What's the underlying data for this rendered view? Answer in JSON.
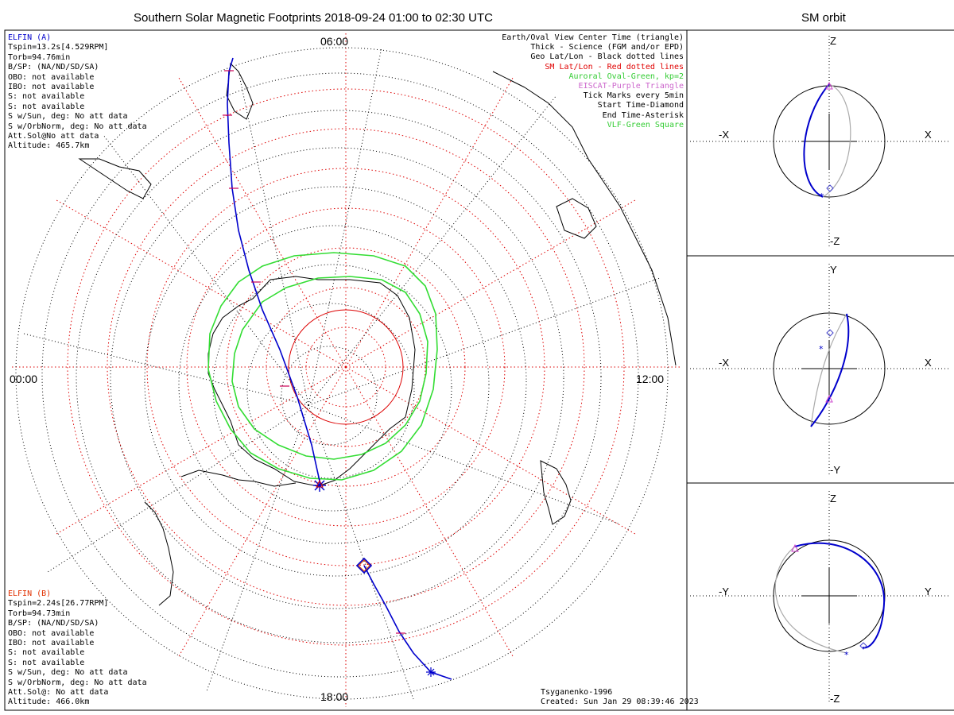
{
  "header": {
    "main_title": "Southern Solar Magnetic Footprints 2018-09-24 01:00 to 02:30 UTC",
    "orbit_title": "SM orbit"
  },
  "map": {
    "hour_labels": {
      "top": "06:00",
      "left": "00:00",
      "right": "12:00",
      "bottom": "18:00"
    }
  },
  "legend": {
    "lines": [
      {
        "text": "Earth/Oval View Center Time (triangle)",
        "color": "#000000"
      },
      {
        "text": "Thick - Science (FGM and/or EPD)",
        "color": "#000000"
      },
      {
        "text": "Geo Lat/Lon - Black dotted lines",
        "color": "#000000"
      },
      {
        "text": "SM Lat/Lon - Red dotted lines",
        "color": "#e00000"
      },
      {
        "text": "Auroral Oval-Green, kp=2",
        "color": "#33cc33"
      },
      {
        "text": "EISCAT-Purple Triangle",
        "color": "#cc66cc"
      },
      {
        "text": "Tick Marks every 5min",
        "color": "#000000"
      },
      {
        "text": "Start Time-Diamond",
        "color": "#000000"
      },
      {
        "text": "End Time-Asterisk",
        "color": "#000000"
      },
      {
        "text": "VLF-Green Square",
        "color": "#33cc33"
      }
    ]
  },
  "elfin_a": {
    "name": "ELFIN (A)",
    "name_color": "#0000cc",
    "lines": [
      "Tspin=13.2s[4.529RPM]",
      "Torb=94.76min",
      "B/SP: (NA/ND/SD/SA)",
      "OBO: not available",
      "IBO: not available",
      "S: not available",
      "S: not available",
      "S w/Sun, deg: No att data",
      "S w/OrbNorm, deg: No att data",
      "Att.Sol@No att data",
      "Altitude: 465.7km"
    ]
  },
  "elfin_b": {
    "name": "ELFIN (B)",
    "name_color": "#e03000",
    "lines": [
      "Tspin=2.24s[26.77RPM]",
      "Torb=94.73min",
      "B/SP: (NA/ND/SD/SA)",
      "OBO: not available",
      "IBO: not available",
      "S: not available",
      "S: not available",
      "S w/Sun, deg: No att data",
      "S w/OrbNorm, deg: No att data",
      "Att.Sol@: No att data",
      "Altitude: 466.0km"
    ]
  },
  "footer": {
    "model": "Tsyganenko-1996",
    "created": "Created: Sun Jan 29 08:39:46 2023"
  },
  "orbit_panels": [
    {
      "top": "Z",
      "bottom": "-Z",
      "left": "-X",
      "right": "X"
    },
    {
      "top": "Y",
      "bottom": "-Y",
      "left": "-X",
      "right": "X"
    },
    {
      "top": "Z",
      "bottom": "-Z",
      "left": "-Y",
      "right": "Y"
    }
  ],
  "colors": {
    "track": "#0000cc",
    "oval": "#33dd33",
    "sm_grid": "#dd0000",
    "geo_grid": "#000000",
    "tick_mark": "#cc0055"
  }
}
